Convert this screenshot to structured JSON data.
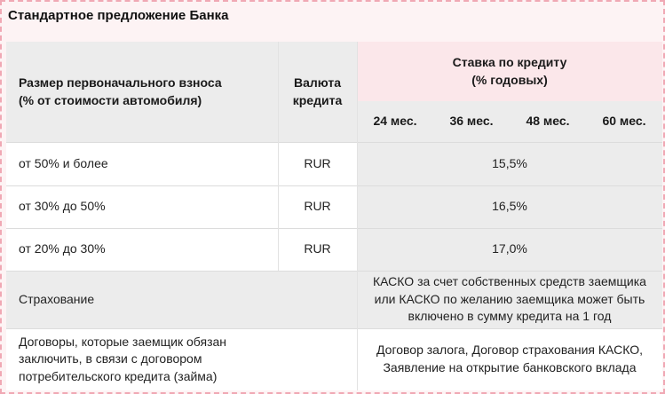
{
  "title": "Стандартное предложение Банка",
  "header": {
    "down_payment_line1": "Размер первоначального взноса",
    "down_payment_line2": "(% от стоимости автомобиля)",
    "currency_line1": "Валюта",
    "currency_line2": "кредита",
    "rate_line1": "Ставка по кредиту",
    "rate_line2": "(% годовых)",
    "terms": [
      "24 мес.",
      "36 мес.",
      "48 мес.",
      "60 мес."
    ]
  },
  "rows": [
    {
      "down_payment": "от 50% и более",
      "currency": "RUR",
      "rate": "15,5%"
    },
    {
      "down_payment": "от 30% до 50%",
      "currency": "RUR",
      "rate": "16,5%"
    },
    {
      "down_payment": "от 20% до 30%",
      "currency": "RUR",
      "rate": "17,0%"
    }
  ],
  "insurance": {
    "label": "Страхование",
    "line1": "КАСКО за счет собственных средств заемщика",
    "line2": "или КАСКО по желанию заемщика может быть",
    "line3": "включено в сумму кредита на 1 год"
  },
  "contracts": {
    "label_line1": "Договоры, которые заемщик обязан",
    "label_line2": "заключить, в связи с договором",
    "label_line3": "потребительского кредита (займа)",
    "value_line1": "Договор залога, Договор страхования КАСКО,",
    "value_line2": "Заявление на открытие банковского вклада"
  }
}
